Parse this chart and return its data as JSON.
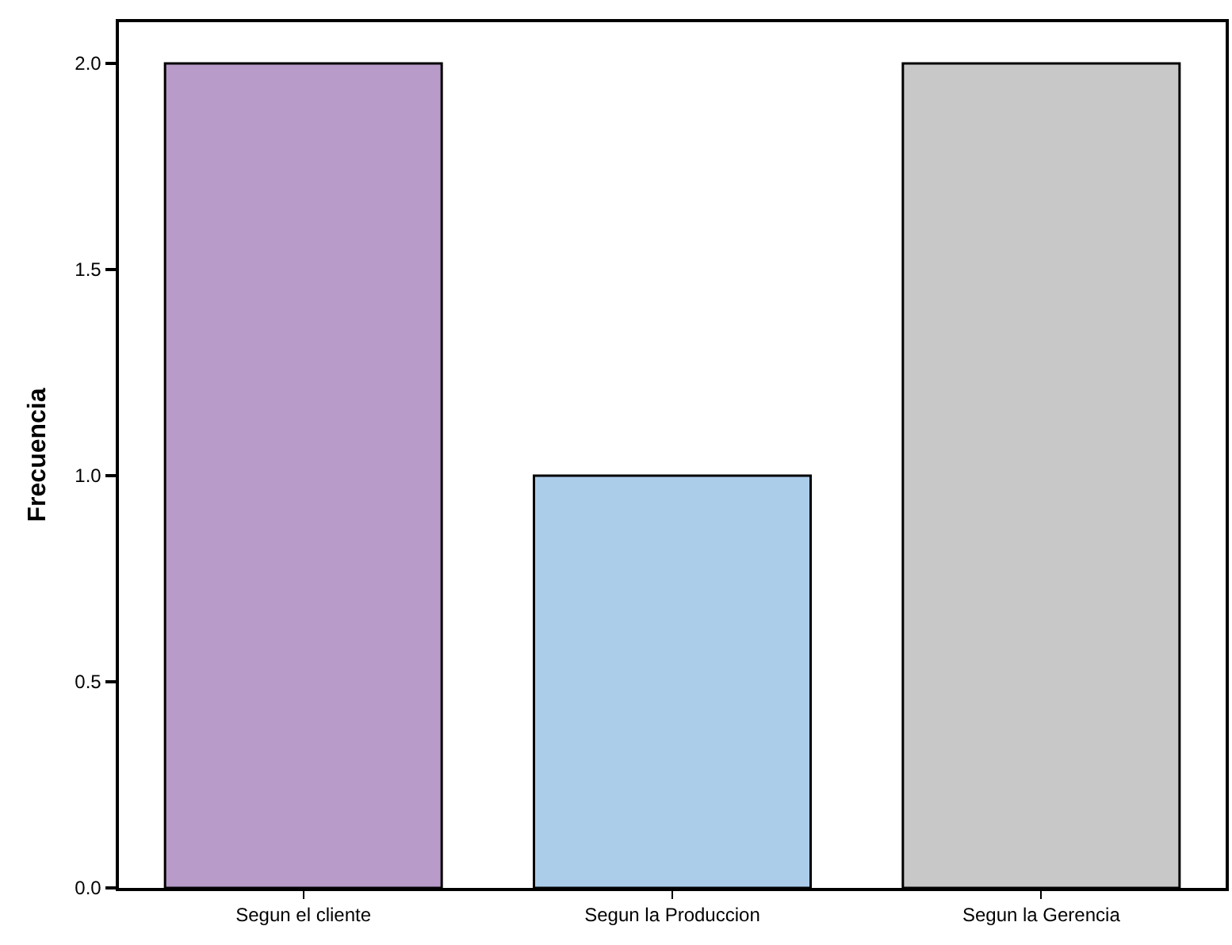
{
  "chart_data": {
    "type": "bar",
    "ylabel": "Frecuencia",
    "categories": [
      "Segun el cliente",
      "Segun la Produccion",
      "Segun la Gerencia"
    ],
    "values": [
      2,
      1,
      2
    ],
    "colors": [
      "#b89bc9",
      "#abcdea",
      "#c8c8c8"
    ],
    "ylim": [
      0,
      2.1
    ],
    "yticks": [
      {
        "value": 0,
        "label": "0.0"
      },
      {
        "value": 0.5,
        "label": "0.5"
      },
      {
        "value": 1,
        "label": "1.0"
      },
      {
        "value": 1.5,
        "label": "1.5"
      },
      {
        "value": 2,
        "label": "2.0"
      }
    ],
    "grid": false
  }
}
